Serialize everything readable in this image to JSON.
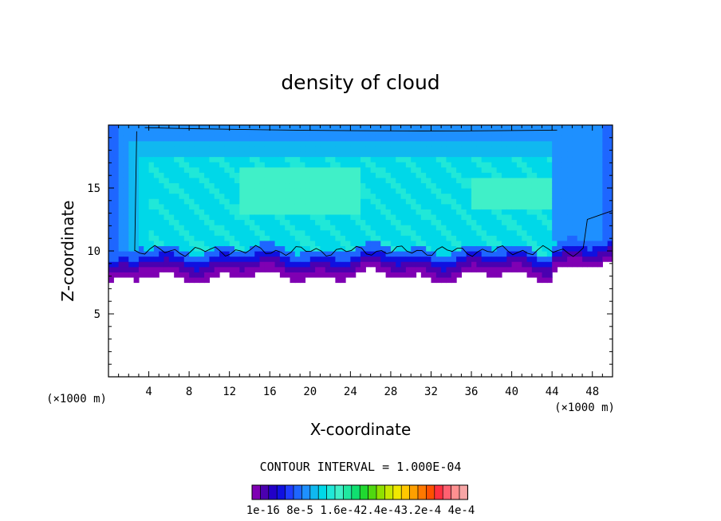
{
  "chart_data": {
    "type": "heatmap",
    "title": "density of cloud",
    "xlabel": "X-coordinate",
    "ylabel": "Z-coordinate",
    "x_unit": "(×1000 m)",
    "xlim": [
      0,
      50
    ],
    "ylim": [
      0,
      20
    ],
    "x_ticks": [
      "4",
      "8",
      "12",
      "16",
      "20",
      "24",
      "28",
      "32",
      "36",
      "40",
      "44",
      "48"
    ],
    "y_ticks": [
      "5",
      "10",
      "15"
    ],
    "contour_interval_text": "CONTOUR INTERVAL = 1.000E-04",
    "colorbar": {
      "labels": [
        "1e-16",
        "8e-5",
        "1.6e-4",
        "2.4e-4",
        "3.2e-4",
        "4e-4"
      ],
      "label_text": "1e-16 8e-5 1.6e-42.4e-43.2e-4 4e-4",
      "colors": [
        "#7f00b3",
        "#4b00b0",
        "#2200c8",
        "#1010e0",
        "#1f3cff",
        "#1e66ff",
        "#1e90ff",
        "#10b8f0",
        "#00d8e8",
        "#20e8d8",
        "#40f0c8",
        "#20e8a0",
        "#10e070",
        "#20d830",
        "#50d810",
        "#90e000",
        "#c8e800",
        "#f0e800",
        "#ffc800",
        "#ffa000",
        "#ff7800",
        "#ff5000",
        "#ff3040",
        "#ff6070",
        "#ff9090",
        "#f7a5a5"
      ],
      "range": [
        1e-16,
        0.0004
      ]
    },
    "cloud_base_z": 8.0,
    "cloud_top_z": 19.8,
    "cloud_x_range": [
      0,
      50
    ],
    "contour_line_z": 10.0
  }
}
